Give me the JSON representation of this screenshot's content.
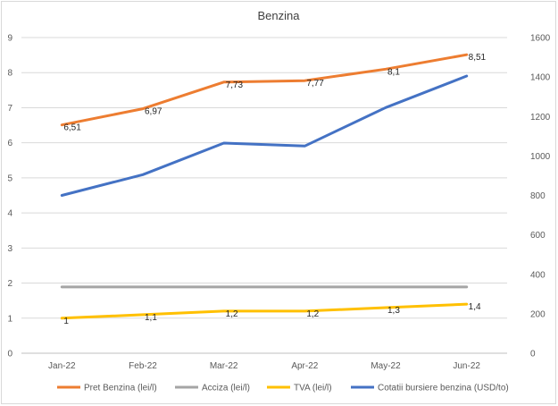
{
  "chart_data": {
    "type": "line",
    "title": "Benzina",
    "categories": [
      "Jan-22",
      "Feb-22",
      "Mar-22",
      "Apr-22",
      "May-22",
      "Jun-22"
    ],
    "y_left": {
      "min": 0,
      "max": 9,
      "ticks": [
        "0",
        "1",
        "2",
        "3",
        "4",
        "5",
        "6",
        "7",
        "8",
        "9"
      ]
    },
    "y_right": {
      "min": 0,
      "max": 1600,
      "ticks": [
        "0",
        "200",
        "400",
        "600",
        "800",
        "1000",
        "1200",
        "1400",
        "1600"
      ]
    },
    "grid": true,
    "legend_position": "bottom",
    "series": [
      {
        "name": "Pret Benzina (lei/l)",
        "axis": "left",
        "color": "#ED7D31",
        "values": [
          6.51,
          6.97,
          7.73,
          7.77,
          8.1,
          8.51
        ],
        "labels": [
          "6,51",
          "6,97",
          "7,73",
          "7,77",
          "8,1",
          "8,51"
        ]
      },
      {
        "name": "Acciza (lei/l)",
        "axis": "left",
        "color": "#A5A5A5",
        "values": [
          1.89,
          1.89,
          1.89,
          1.89,
          1.89,
          1.89
        ],
        "labels": []
      },
      {
        "name": "TVA (lei/l)",
        "axis": "left",
        "color": "#FFC000",
        "values": [
          1,
          1.1,
          1.2,
          1.2,
          1.3,
          1.4
        ],
        "labels": [
          "1",
          "1,1",
          "1,2",
          "1,2",
          "1,3",
          "1,4"
        ]
      },
      {
        "name": "Cotatii bursiere benzina (USD/to)",
        "axis": "right",
        "color": "#4472C4",
        "values": [
          800,
          905,
          1065,
          1050,
          1245,
          1405
        ],
        "labels": []
      }
    ]
  }
}
